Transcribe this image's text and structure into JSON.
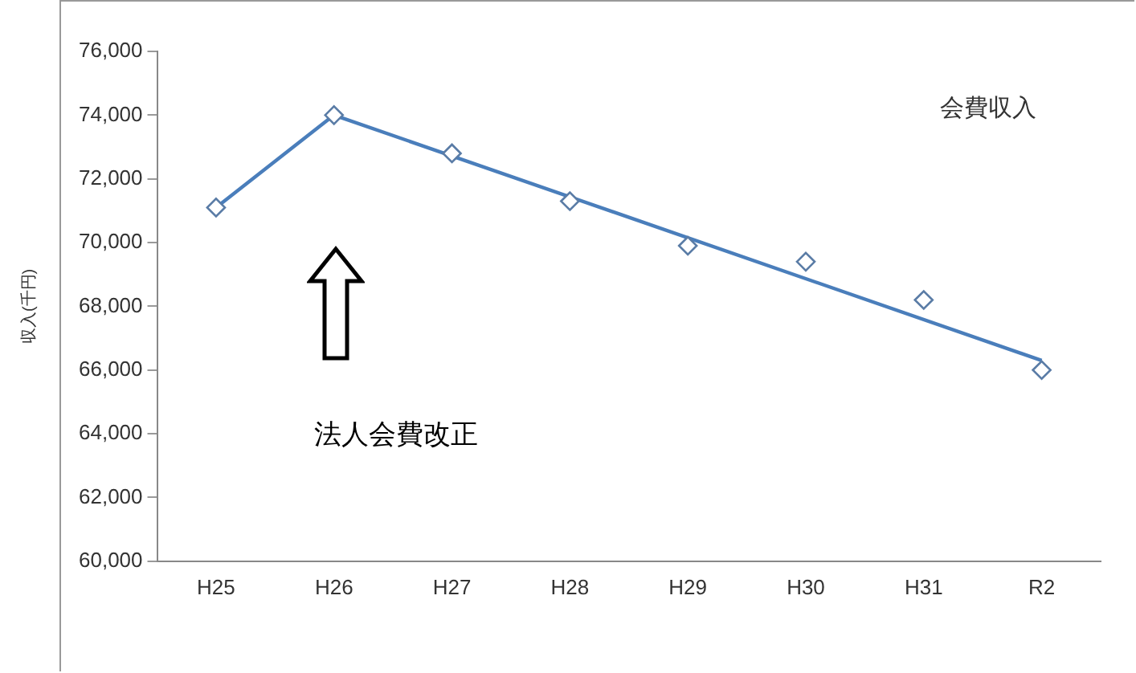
{
  "chart_data": {
    "type": "line",
    "ylabel": "収入(千円)",
    "categories": [
      "H25",
      "H26",
      "H27",
      "H28",
      "H29",
      "H30",
      "H31",
      "R2"
    ],
    "series": [
      {
        "type": "scatter",
        "color": "#5a7ca6",
        "marker": "diamond",
        "values": [
          71100,
          74000,
          72800,
          71300,
          69900,
          69400,
          68200,
          66000
        ]
      },
      {
        "type": "line",
        "color": "#4a7ebb",
        "marker": "none",
        "values": [
          71100,
          74000,
          null,
          null,
          null,
          null,
          null,
          66300
        ]
      }
    ],
    "ylim": [
      60000,
      76000
    ],
    "yticks": [
      {
        "value": 60000,
        "label": "60,000"
      },
      {
        "value": 62000,
        "label": "62,000"
      },
      {
        "value": 64000,
        "label": "64,000"
      },
      {
        "value": 66000,
        "label": "66,000"
      },
      {
        "value": 68000,
        "label": "68,000"
      },
      {
        "value": 70000,
        "label": "70,000"
      },
      {
        "value": 72000,
        "label": "72,000"
      },
      {
        "value": 74000,
        "label": "74,000"
      },
      {
        "value": 76000,
        "label": "76,000"
      }
    ],
    "grid": false,
    "legend": false,
    "annotations": [
      "会費収入",
      "法人会費改正"
    ]
  }
}
